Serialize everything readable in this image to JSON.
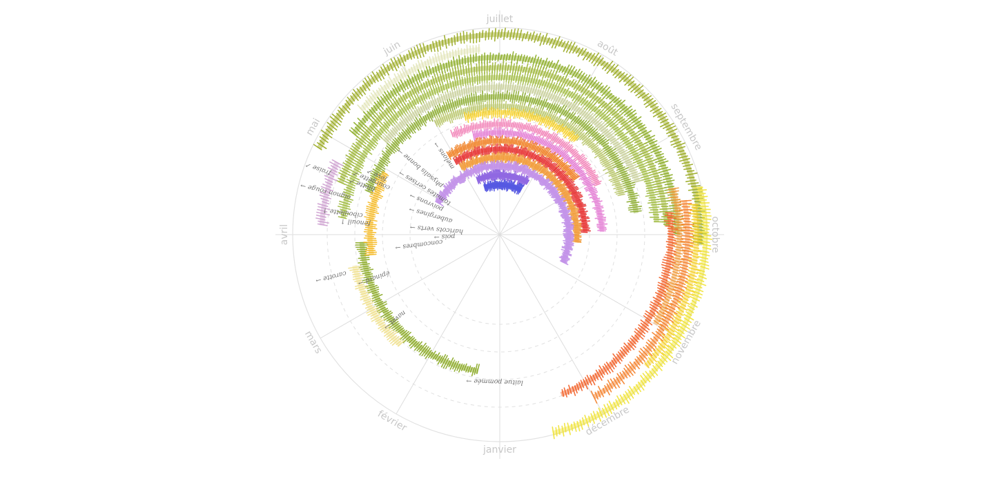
{
  "chart_data": {
    "type": "radial-timeline",
    "title": "",
    "months": [
      {
        "name": "janvier",
        "angle": 180
      },
      {
        "name": "février",
        "angle": 210
      },
      {
        "name": "mars",
        "angle": 240
      },
      {
        "name": "avril",
        "angle": 270
      },
      {
        "name": "mai",
        "angle": 300
      },
      {
        "name": "juin",
        "angle": 330
      },
      {
        "name": "juillet",
        "angle": 0
      },
      {
        "name": "août",
        "angle": 30
      },
      {
        "name": "septembre",
        "angle": 60
      },
      {
        "name": "octobre",
        "angle": 90
      },
      {
        "name": "novembre",
        "angle": 120
      },
      {
        "name": "décembre",
        "angle": 150
      }
    ],
    "series": [
      {
        "color": "#98a81e",
        "start_month": 3.85,
        "end_month": 9.1
      },
      {
        "color": "#e2e5b8",
        "start_month": 4.4,
        "end_month": 5.8
      },
      {
        "color": "#8aab22",
        "start_month": 4.15,
        "end_month": 9.0
      },
      {
        "color": "#9bb433",
        "start_month": 3.6,
        "end_month": 8.9
      },
      {
        "color": "#9fba3f",
        "start_month": 3.2,
        "end_month": 8.85
      },
      {
        "color": "#c7cf98",
        "start_month": 4.3,
        "end_month": 8.3
      },
      {
        "color": "#cd9fcf",
        "start_month": 3.1,
        "end_month": 3.8
      },
      {
        "color": "#8aab2c",
        "start_month": 3.6,
        "end_month": 8.7
      },
      {
        "color": "#b9c66a",
        "start_month": 5.0,
        "end_month": 8.4
      },
      {
        "color": "#89a823",
        "start_month": 0.3,
        "end_month": 2.9,
        "label": "laitue pommée"
      },
      {
        "color": "#efe08d",
        "start_month": 1.4,
        "end_month": 2.6
      },
      {
        "color": "#f5b922",
        "start_month": 2.7,
        "end_month": 3.95
      },
      {
        "color": "#f7d02a",
        "start_month": 5.45,
        "end_month": 7.3
      },
      {
        "color": "#f283b7",
        "start_month": 5.15,
        "end_month": 8.1,
        "label": "physalis"
      },
      {
        "color": "#e37ad3",
        "start_month": 5.5,
        "end_month": 8.95,
        "label": "melons"
      },
      {
        "color": "#ef7d1e",
        "start_month": 4.9,
        "end_month": 7.8,
        "label": "tomates"
      },
      {
        "color": "#e62d2d",
        "start_month": 4.95,
        "end_month": 8.95,
        "label": "poivrons"
      },
      {
        "color": "#f19a36",
        "start_month": 5.0,
        "end_month": 9.2,
        "label": "aubergines"
      },
      {
        "color": "#c08fe8",
        "start_month": 3.9,
        "end_month": 9.8,
        "label": "concombres"
      },
      {
        "color": "#8a5fe0",
        "start_month": 5.25,
        "end_month": 6.95,
        "label": "haricots"
      },
      {
        "color": "#4c4fe0",
        "start_month": 5.4,
        "end_month": 6.85,
        "label": "pois"
      }
    ],
    "outer_bands": [
      {
        "color": "#f0e234",
        "start_month": 8.55,
        "end_month": 11.5
      },
      {
        "color": "#f5ce29",
        "start_month": 8.7,
        "end_month": 10.4
      },
      {
        "color": "#f09a3a",
        "start_month": 8.5,
        "end_month": 10.0
      },
      {
        "color": "#f47e27",
        "start_month": 8.65,
        "end_month": 11.0
      },
      {
        "color": "#f25d23",
        "start_month": 8.75,
        "end_month": 11.3
      }
    ],
    "labels": {
      "laitue": "laitue pommée →",
      "navet": "navet →",
      "epinard": "épinard →",
      "carotte": "carotte →",
      "fenouil": "fenouil ↑",
      "ciboulette": "ciboulette ↑",
      "oignon": "oignon rouge →",
      "fraise": "fraise ↗",
      "blette": "blette ↗",
      "courgette": "courgette ↗",
      "feve": "fève ↗",
      "physalis": "physalis bonne →",
      "melons": "melons →",
      "tomates": "tomates cerises →",
      "poivrons": "poivrons →",
      "aubergines": "aubergines →",
      "concombres": "concombres →",
      "haricots": "haricots verts →",
      "pois": "pois →"
    }
  }
}
